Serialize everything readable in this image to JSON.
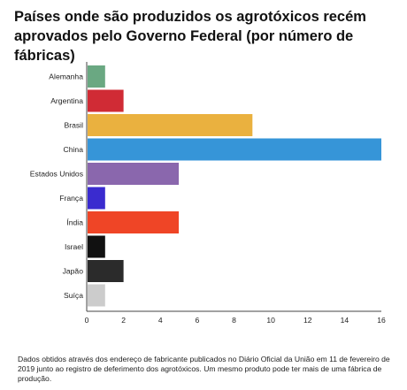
{
  "title": "Países onde são produzidos os agrotóxicos recém aprovados pelo Governo Federal (por número de fábricas)",
  "footnote": "Dados obtidos através dos endereço de fabricante publicados no Diário Oficial da União em 11 de fevereiro de 2019 junto ao registro de deferimento dos agrotóxicos. Um mesmo produto pode ter mais de uma fábrica de produção.",
  "chart_data": {
    "type": "bar",
    "orientation": "horizontal",
    "categories": [
      "Alemanha",
      "Argentina",
      "Brasil",
      "China",
      "Estados Unidos",
      "França",
      "Índia",
      "Israel",
      "Japão",
      "Suíça"
    ],
    "values": [
      1,
      2,
      9,
      16,
      5,
      1,
      5,
      1,
      2,
      1
    ],
    "colors": [
      "#6aa882",
      "#d02b35",
      "#eab13f",
      "#3695d8",
      "#8a67ad",
      "#3a2bcf",
      "#ef4526",
      "#111111",
      "#2b2b2b",
      "#cccccc"
    ],
    "xlim": [
      0,
      16
    ],
    "xticks": [
      0,
      2,
      4,
      6,
      8,
      10,
      12,
      14,
      16
    ],
    "grid": false
  }
}
